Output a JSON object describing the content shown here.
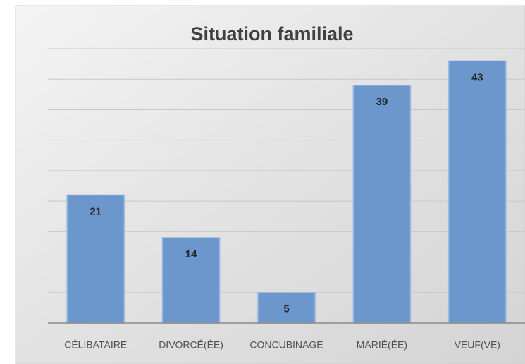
{
  "chart_data": {
    "type": "bar",
    "title": "Situation familiale",
    "categories": [
      "CÉLIBATAIRE",
      "DIVORCÉ(ÉE)",
      "CONCUBINAGE",
      "MARIÉ(ÉE)",
      "VEUF(VE)"
    ],
    "values": [
      21,
      14,
      5,
      39,
      43
    ],
    "color": "#6b97cd",
    "ylim": [
      0,
      45
    ],
    "yticks": [
      0,
      5,
      10,
      15,
      20,
      25,
      30,
      35,
      40,
      45
    ],
    "grid": true
  }
}
